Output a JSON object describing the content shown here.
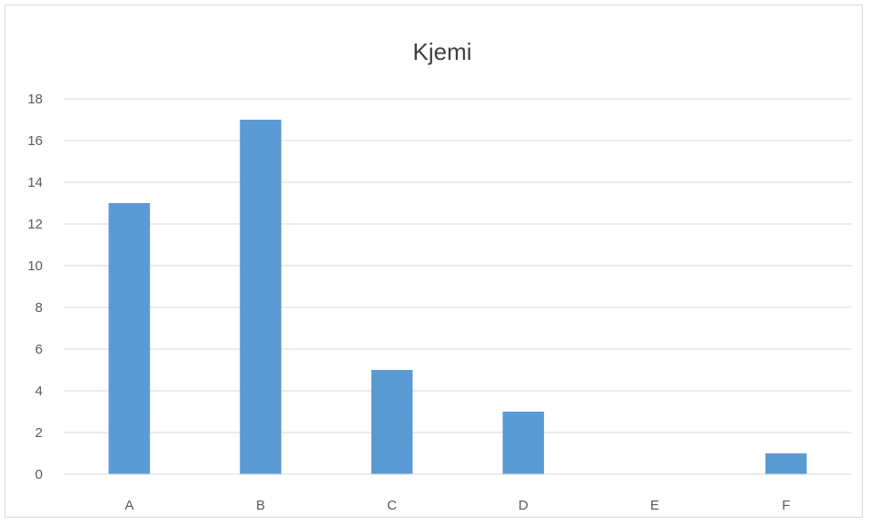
{
  "chart_data": {
    "type": "bar",
    "title": "Kjemi",
    "categories": [
      "A",
      "B",
      "C",
      "D",
      "E",
      "F"
    ],
    "values": [
      13,
      17,
      5,
      3,
      0,
      1
    ],
    "ylim": [
      0,
      18
    ],
    "yticks": [
      0,
      2,
      4,
      6,
      8,
      10,
      12,
      14,
      16,
      18
    ],
    "grid": true,
    "legend": "none",
    "bar_color": "#5b9bd5"
  }
}
